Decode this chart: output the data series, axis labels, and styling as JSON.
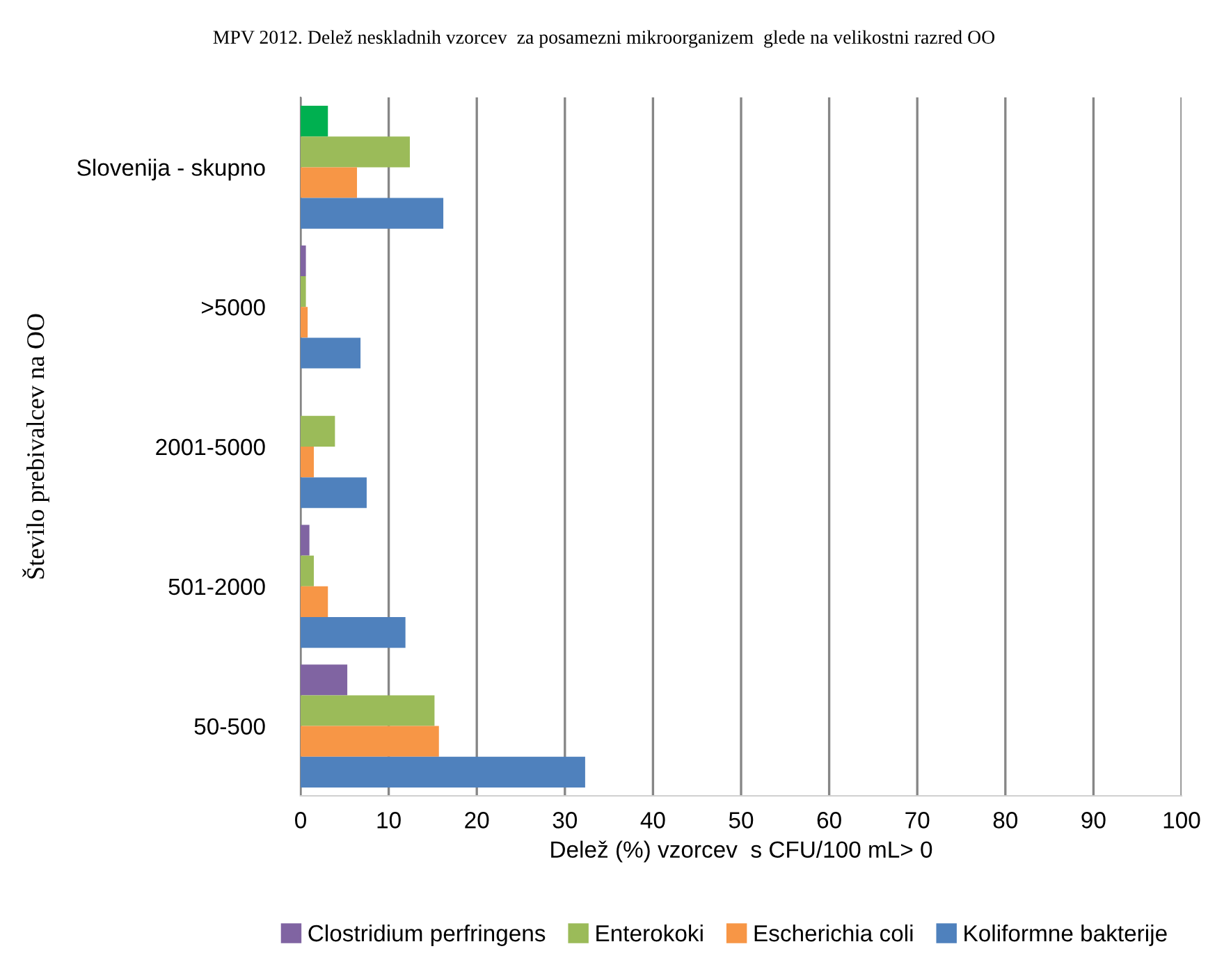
{
  "chart_data": {
    "type": "bar",
    "orientation": "horizontal",
    "title": "MPV 2012. Delež neskladnih vzorcev  za posamezni mikroorganizem  glede na velikostni razred OO",
    "xlabel": "Delež (%) vzorcev  s CFU/100 mL> 0",
    "ylabel": "Število prebivalcev na OO",
    "categories": [
      "Slovenija - skupno",
      ">5000",
      "2001-5000",
      "501-2000",
      "50-500"
    ],
    "series": [
      {
        "name": "Clostridium perfringens",
        "color": "#8064a2",
        "colors": [
          "#00b050",
          "#8064a2",
          "#8064a2",
          "#8064a2",
          "#8064a2"
        ],
        "values": [
          3.1,
          0.6,
          0,
          1.0,
          5.3
        ]
      },
      {
        "name": "Enterokoki",
        "color": "#9bbb59",
        "values": [
          12.4,
          0.6,
          3.9,
          1.5,
          15.2
        ]
      },
      {
        "name": "Escherichia coli",
        "color": "#f79646",
        "values": [
          6.4,
          0.8,
          1.5,
          3.1,
          15.7
        ]
      },
      {
        "name": "Koliformne bakterije",
        "color": "#4f81bd",
        "values": [
          16.2,
          6.8,
          7.5,
          11.9,
          32.3
        ]
      }
    ],
    "xlim": [
      0,
      100
    ],
    "xticks": [
      0,
      10,
      20,
      30,
      40,
      50,
      60,
      70,
      80,
      90,
      100
    ],
    "grid": "x",
    "legend": "bottom"
  }
}
